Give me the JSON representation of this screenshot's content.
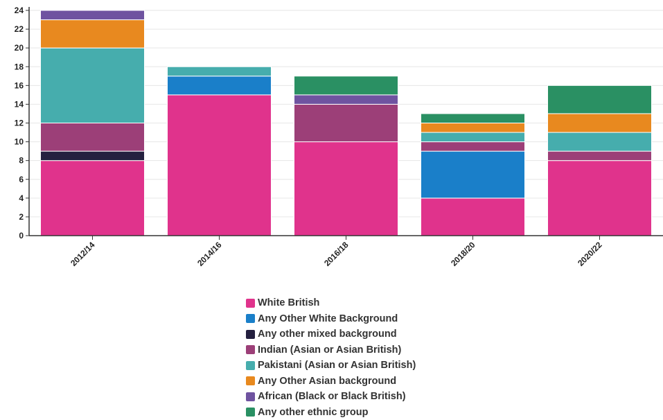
{
  "chart_data": {
    "type": "bar",
    "stacked": true,
    "categories": [
      "2012/14",
      "2014/16",
      "2016/18",
      "2018/20",
      "2020/22"
    ],
    "series": [
      {
        "name": "White British",
        "color": "#e0338c",
        "values": [
          8,
          15,
          10,
          4,
          8
        ]
      },
      {
        "name": "Any Other White Background",
        "color": "#1a7fc9",
        "values": [
          0,
          2,
          0,
          5,
          0
        ]
      },
      {
        "name": "Any other mixed background",
        "color": "#24203f",
        "values": [
          1,
          0,
          0,
          0,
          0
        ]
      },
      {
        "name": "Indian (Asian or Asian British)",
        "color": "#9c3f78",
        "values": [
          3,
          0,
          4,
          1,
          1
        ]
      },
      {
        "name": "Pakistani (Asian or Asian British)",
        "color": "#46adad",
        "values": [
          8,
          1,
          0,
          1,
          2
        ]
      },
      {
        "name": "Any Other Asian background",
        "color": "#e8891f",
        "values": [
          3,
          0,
          0,
          1,
          2
        ]
      },
      {
        "name": "African (Black or Black British)",
        "color": "#6f53a0",
        "values": [
          1,
          0,
          1,
          0,
          0
        ]
      },
      {
        "name": "Any other ethnic group",
        "color": "#2a9063",
        "values": [
          0,
          0,
          2,
          1,
          3
        ]
      }
    ],
    "yticks": [
      "0",
      "2",
      "4",
      "6",
      "8",
      "10",
      "12",
      "14",
      "16",
      "18",
      "20",
      "22",
      "24"
    ],
    "ylim": [
      0,
      24
    ],
    "grid": true,
    "legend_position": "bottom"
  }
}
